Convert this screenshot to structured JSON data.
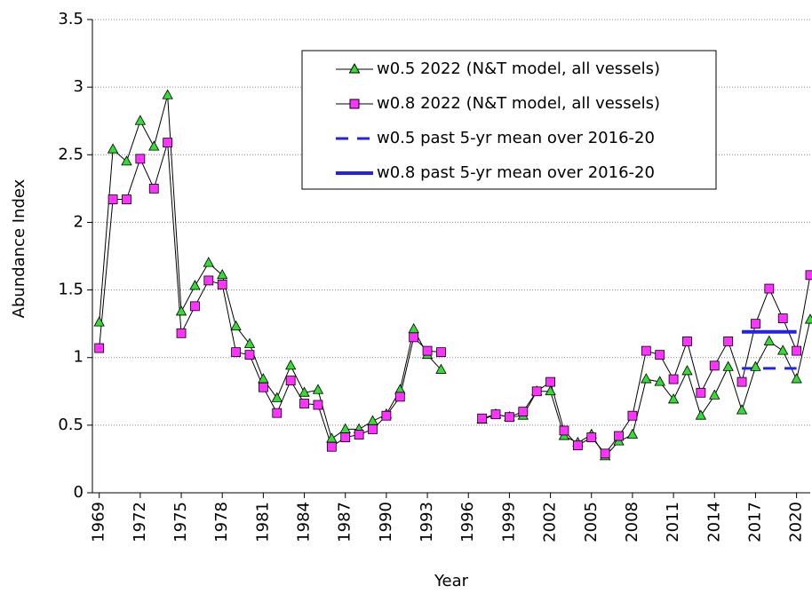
{
  "chart_data": {
    "type": "line",
    "y_label": "Abundance Index",
    "x_label": "Year",
    "x": [
      1969,
      1970,
      1971,
      1972,
      1973,
      1974,
      1975,
      1976,
      1977,
      1978,
      1979,
      1980,
      1981,
      1982,
      1983,
      1984,
      1985,
      1986,
      1987,
      1988,
      1989,
      1990,
      1991,
      1992,
      1993,
      1994,
      1995,
      1996,
      1997,
      1998,
      1999,
      2000,
      2001,
      2002,
      2003,
      2004,
      2005,
      2006,
      2007,
      2008,
      2009,
      2010,
      2011,
      2012,
      2013,
      2014,
      2015,
      2016,
      2017,
      2018,
      2019,
      2020,
      2021
    ],
    "series": [
      {
        "name": "w0.5 2022 (N&T model, all vessels)",
        "color": "#33dd33",
        "line_color": "#000000",
        "marker": "triangle",
        "dash": false,
        "line_width": 1,
        "values": [
          1.26,
          2.54,
          2.45,
          2.75,
          2.56,
          2.94,
          1.34,
          1.53,
          1.7,
          1.61,
          1.23,
          1.1,
          0.84,
          0.7,
          0.94,
          0.74,
          0.76,
          0.4,
          0.47,
          0.47,
          0.53,
          0.58,
          0.76,
          1.21,
          1.02,
          0.91,
          null,
          null,
          0.54,
          0.58,
          0.56,
          0.57,
          0.75,
          0.75,
          0.42,
          0.37,
          0.43,
          0.27,
          0.38,
          0.43,
          0.84,
          0.82,
          0.69,
          0.9,
          0.57,
          0.72,
          0.93,
          0.61,
          0.93,
          1.12,
          1.05,
          0.84,
          1.28
        ]
      },
      {
        "name": "w0.8 2022 (N&T model, all vessels)",
        "color": "#ff33ff",
        "line_color": "#000000",
        "marker": "square",
        "dash": false,
        "line_width": 1,
        "values": [
          1.07,
          2.17,
          2.17,
          2.47,
          2.25,
          2.59,
          1.18,
          1.38,
          1.57,
          1.54,
          1.04,
          1.02,
          0.78,
          0.59,
          0.83,
          0.66,
          0.65,
          0.34,
          0.41,
          0.43,
          0.47,
          0.57,
          0.71,
          1.15,
          1.05,
          1.04,
          null,
          null,
          0.55,
          0.58,
          0.56,
          0.6,
          0.75,
          0.82,
          0.46,
          0.35,
          0.41,
          0.29,
          0.42,
          0.57,
          1.05,
          1.02,
          0.84,
          1.12,
          0.74,
          0.94,
          1.12,
          0.82,
          1.25,
          1.51,
          1.29,
          1.05,
          1.61
        ]
      },
      {
        "name": "w0.5 past 5-yr mean over 2016-20",
        "color": "#2222ee",
        "line_color": "#2222ee",
        "marker": "none",
        "dash": true,
        "line_width": 3,
        "values": [
          null,
          null,
          null,
          null,
          null,
          null,
          null,
          null,
          null,
          null,
          null,
          null,
          null,
          null,
          null,
          null,
          null,
          null,
          null,
          null,
          null,
          null,
          null,
          null,
          null,
          null,
          null,
          null,
          null,
          null,
          null,
          null,
          null,
          null,
          null,
          null,
          null,
          null,
          null,
          null,
          null,
          null,
          null,
          null,
          null,
          null,
          null,
          0.92,
          0.92,
          0.92,
          0.92,
          0.92,
          null
        ]
      },
      {
        "name": "w0.8 past 5-yr mean over 2016-20",
        "color": "#2222ee",
        "line_color": "#2222ee",
        "marker": "none",
        "dash": false,
        "line_width": 4,
        "values": [
          null,
          null,
          null,
          null,
          null,
          null,
          null,
          null,
          null,
          null,
          null,
          null,
          null,
          null,
          null,
          null,
          null,
          null,
          null,
          null,
          null,
          null,
          null,
          null,
          null,
          null,
          null,
          null,
          null,
          null,
          null,
          null,
          null,
          null,
          null,
          null,
          null,
          null,
          null,
          null,
          null,
          null,
          null,
          null,
          null,
          null,
          null,
          1.19,
          1.19,
          1.19,
          1.19,
          1.19,
          null
        ]
      }
    ],
    "xlim": [
      1968.5,
      2021
    ],
    "xticks": [
      1969,
      1972,
      1975,
      1978,
      1981,
      1984,
      1987,
      1990,
      1993,
      1996,
      1999,
      2002,
      2005,
      2008,
      2011,
      2014,
      2017,
      2020
    ],
    "ylim": [
      0,
      3.5
    ],
    "yticks": [
      0,
      0.5,
      1,
      1.5,
      2,
      2.5,
      3,
      3.5
    ],
    "grid": true
  }
}
